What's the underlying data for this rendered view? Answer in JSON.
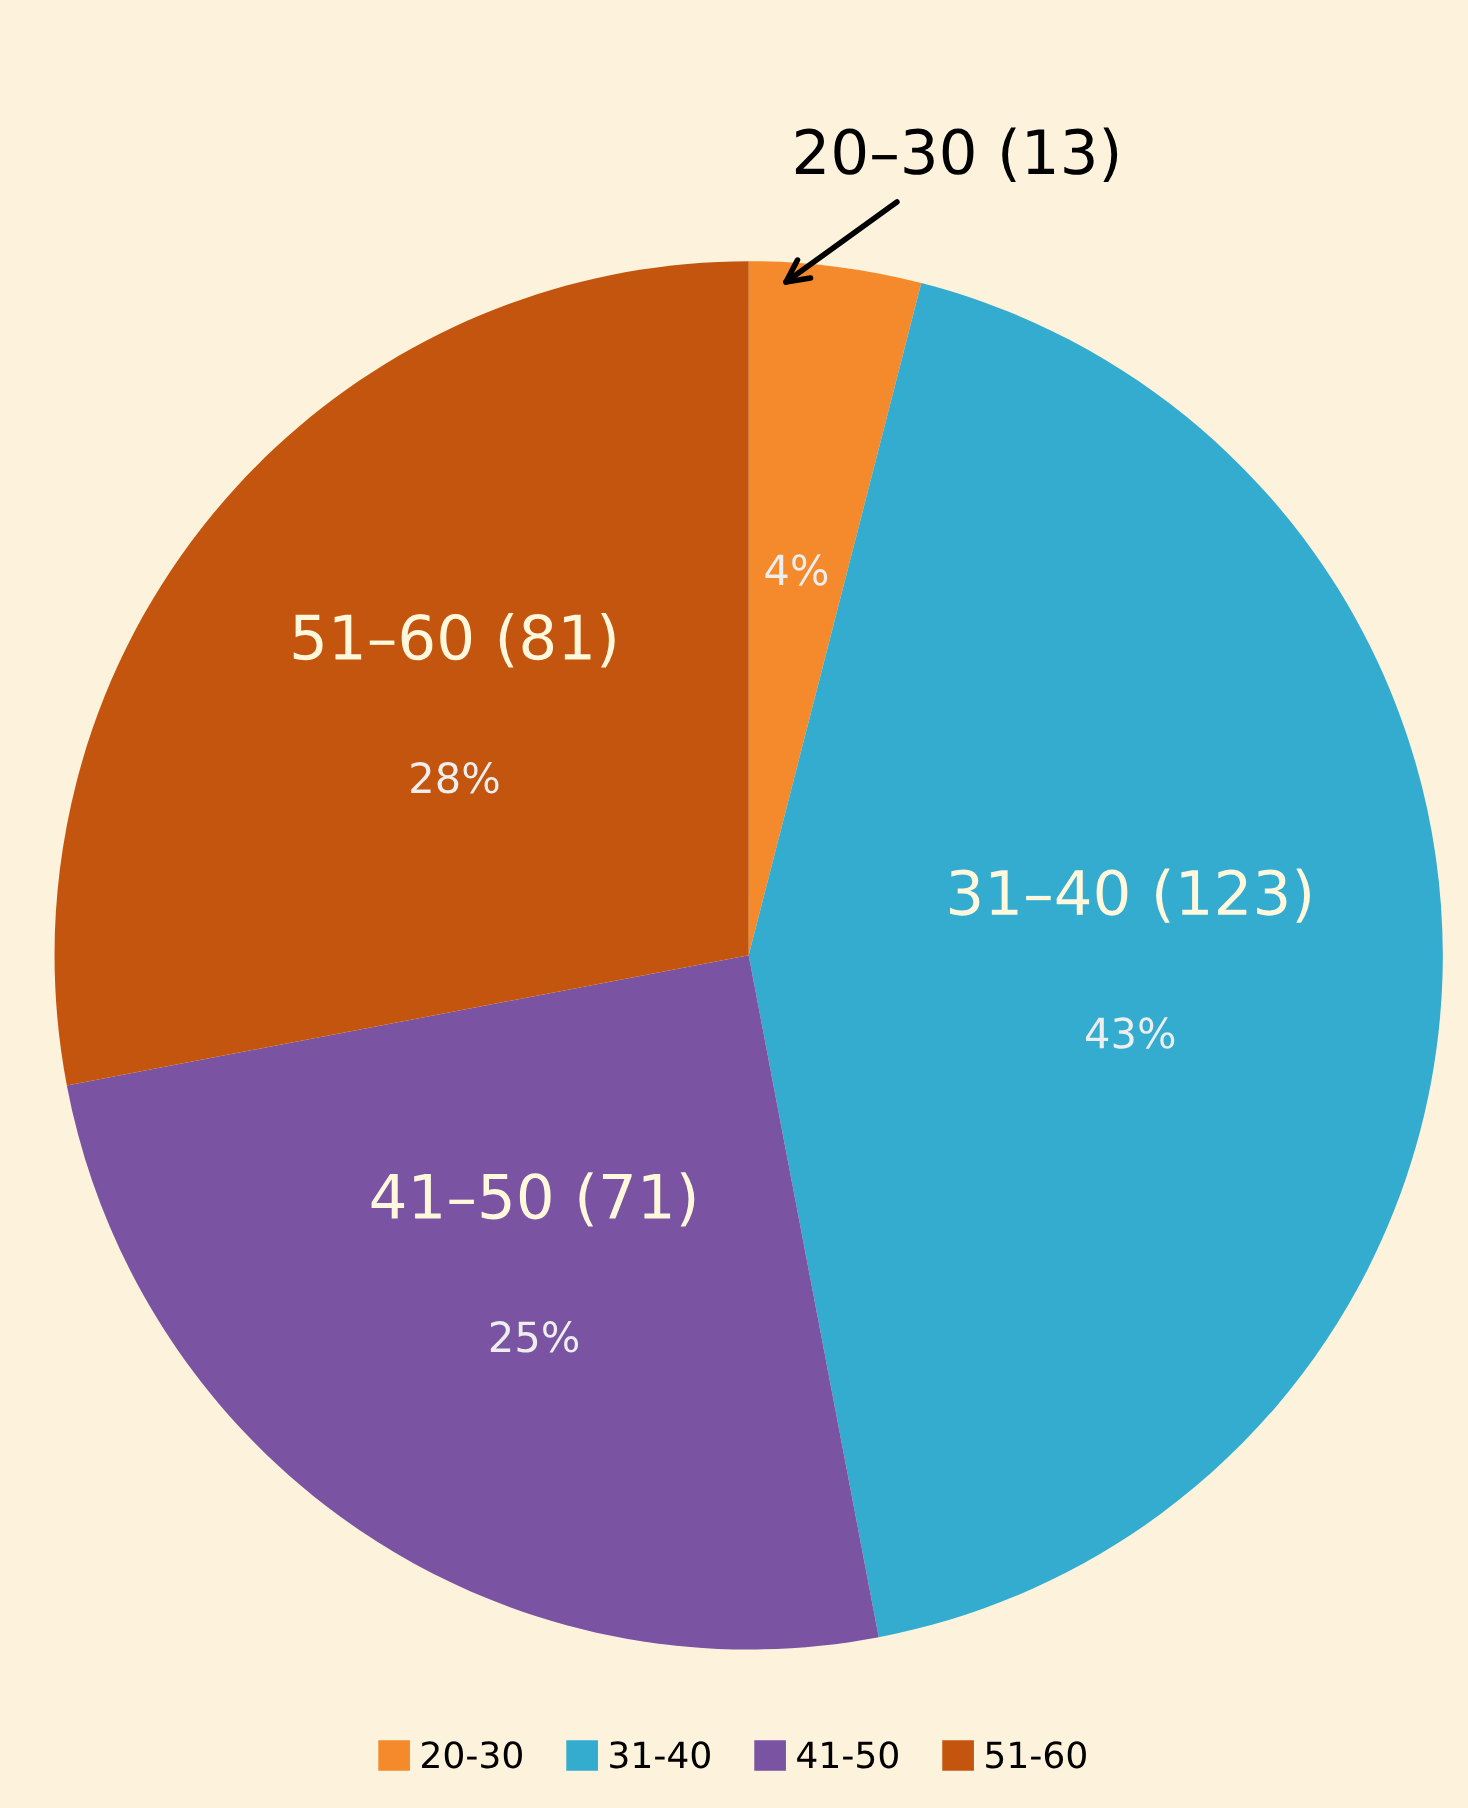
{
  "chart_data": {
    "type": "pie",
    "categories": [
      "20-30",
      "31-40",
      "41-50",
      "51-60"
    ],
    "values": [
      4,
      43,
      25,
      28
    ],
    "colors": [
      "#f58a2c",
      "#33acd0",
      "#7a54a2",
      "#c4550f"
    ],
    "value_labels": [
      "4%",
      "43%",
      "25%",
      "28%"
    ],
    "annotations": [
      {
        "text": "20–30 (13)",
        "x": "20-30"
      },
      {
        "text": "31–40 (123)",
        "x": "31-40"
      },
      {
        "text": "41–50 (71)",
        "x": "41-50"
      },
      {
        "text": "51–60 (81)",
        "x": "51-60"
      }
    ],
    "legend": "bottom"
  }
}
